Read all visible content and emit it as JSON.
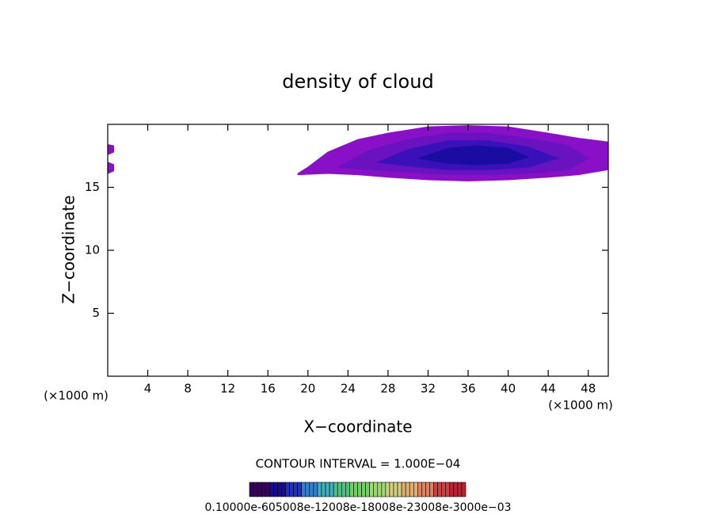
{
  "chart_data": {
    "type": "contour",
    "title": "density of cloud",
    "x_label": "X−coordinate",
    "y_label": "Z−coordinate",
    "x_unit_left": "(×1000 m)",
    "x_unit_right": "(×1000 m)",
    "annotation": "CONTOUR INTERVAL = 1.000E−04",
    "colorbar_label": "0.10000e-605008e-12008e-18008e-23008e-3000e−03",
    "xlim": [
      0,
      50
    ],
    "ylim": [
      0,
      20
    ],
    "xticks": [
      4,
      8,
      12,
      16,
      20,
      24,
      28,
      32,
      36,
      40,
      44,
      48
    ],
    "yticks": [
      5,
      10,
      15
    ],
    "series": [
      {
        "color": "#8a10c8",
        "x": [
          19,
          20,
          22,
          25,
          28,
          32,
          36,
          40,
          44,
          47,
          50,
          50,
          47,
          44,
          40,
          36,
          32,
          28,
          25,
          22,
          19
        ],
        "y": [
          16.1,
          16.6,
          17.8,
          18.8,
          19.3,
          19.8,
          19.9,
          19.8,
          19.3,
          18.9,
          18.6,
          16.4,
          16.0,
          15.8,
          15.6,
          15.5,
          15.6,
          15.8,
          16.0,
          16.1,
          16.0
        ]
      },
      {
        "color": "#6a12c0",
        "x": [
          23,
          26,
          30,
          34,
          38,
          42,
          46,
          48,
          46,
          42,
          38,
          34,
          30,
          26,
          23
        ],
        "y": [
          16.6,
          17.9,
          18.8,
          19.3,
          19.3,
          18.9,
          18.3,
          17.3,
          16.4,
          16.1,
          16.0,
          16.0,
          16.2,
          16.4,
          16.6
        ]
      },
      {
        "color": "#3a10b8",
        "x": [
          27,
          30,
          34,
          38,
          42,
          45,
          42,
          38,
          34,
          30,
          27
        ],
        "y": [
          17.0,
          18.0,
          18.7,
          18.7,
          18.2,
          17.3,
          16.6,
          16.4,
          16.4,
          16.7,
          17.0
        ]
      },
      {
        "color": "#1a0ca0",
        "x": [
          31,
          34,
          37,
          40,
          42,
          40,
          37,
          34,
          31
        ],
        "y": [
          17.3,
          18.1,
          18.3,
          18.1,
          17.4,
          16.9,
          16.8,
          16.9,
          17.3
        ]
      },
      {
        "color": "#8a10c8",
        "x": [
          0,
          0.6,
          0.6,
          0
        ],
        "y": [
          17.6,
          17.8,
          18.3,
          18.4
        ]
      },
      {
        "color": "#8a10c8",
        "x": [
          0,
          0.6,
          0.6,
          0
        ],
        "y": [
          16.1,
          16.3,
          16.8,
          17.0
        ]
      }
    ]
  }
}
